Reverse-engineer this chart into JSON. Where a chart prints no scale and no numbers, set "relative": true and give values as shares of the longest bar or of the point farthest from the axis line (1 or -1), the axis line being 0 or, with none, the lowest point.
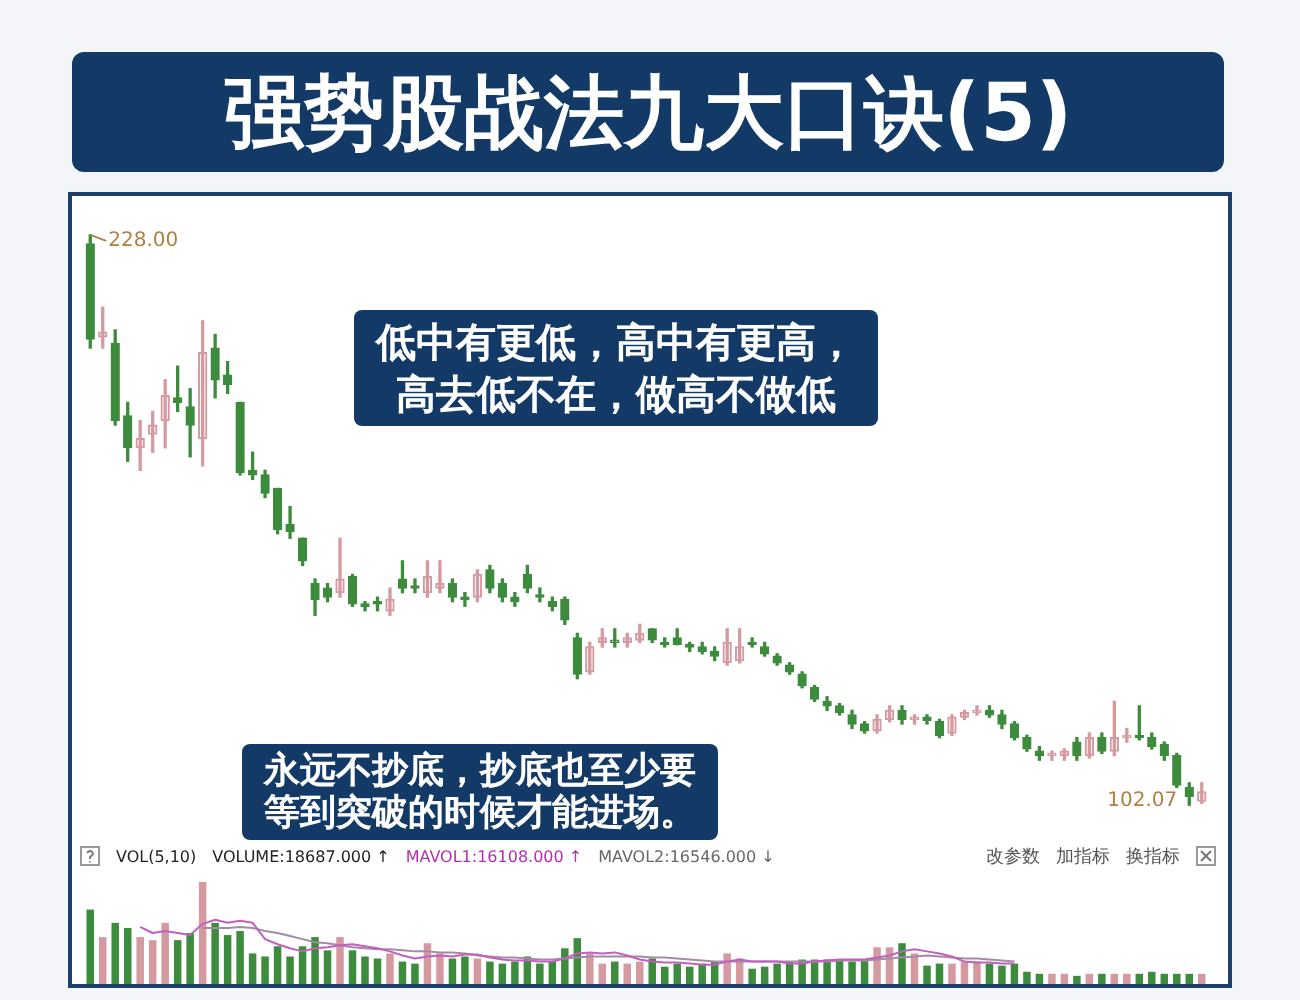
{
  "chart_data": [
    {
      "type": "candlestick",
      "title": "强势股战法九大口诀(5)",
      "tick_labels": false,
      "categories": [
        null,
        null,
        null,
        null,
        null,
        null,
        null,
        null,
        null,
        null,
        null,
        null,
        null,
        null,
        null,
        null,
        null,
        null,
        null,
        null,
        null,
        null,
        null,
        null,
        null,
        null,
        null,
        null,
        null,
        null,
        null,
        null,
        null,
        null,
        null,
        null,
        null,
        null,
        null,
        null,
        null,
        null,
        null,
        null,
        null,
        null,
        null,
        null,
        null,
        null,
        null,
        null,
        null,
        null,
        null,
        null,
        null,
        null,
        null,
        null,
        null,
        null,
        null,
        null,
        null,
        null,
        null,
        null,
        null,
        null,
        null,
        null,
        null,
        null,
        null,
        null,
        null,
        null,
        null,
        null,
        null,
        null,
        null,
        null,
        null,
        null,
        null,
        null,
        null,
        null
      ],
      "ohlc": [
        [
          226,
          228,
          203,
          205
        ],
        [
          205.5,
          212,
          203,
          206.5
        ],
        [
          204,
          207,
          186,
          187
        ],
        [
          188,
          191,
          178,
          181
        ],
        [
          181,
          187,
          176,
          183
        ],
        [
          184,
          189,
          180,
          186
        ],
        [
          187,
          196,
          181,
          192.5
        ],
        [
          192,
          199,
          189,
          191
        ],
        [
          190,
          194,
          179,
          186
        ],
        [
          183,
          209,
          177,
          202
        ],
        [
          203,
          206,
          192,
          196
        ],
        [
          197,
          200,
          193,
          195
        ],
        [
          191,
          191,
          175,
          175.5
        ],
        [
          176,
          180,
          174,
          175
        ],
        [
          175,
          176,
          170,
          171
        ],
        [
          172,
          172,
          162,
          163
        ],
        [
          164,
          168,
          161,
          162.5
        ],
        [
          161,
          161,
          155,
          156
        ],
        [
          151,
          152,
          144,
          147.5
        ],
        [
          150,
          151,
          147,
          148
        ],
        [
          149,
          161,
          148,
          152
        ],
        [
          152.5,
          153,
          146,
          146.5
        ],
        [
          146.5,
          147,
          145,
          146
        ],
        [
          147,
          148,
          145,
          146.5
        ],
        [
          145,
          150,
          144,
          147.5
        ],
        [
          152,
          156,
          149,
          150
        ],
        [
          150.5,
          152,
          149,
          150
        ],
        [
          149,
          156,
          148,
          152.5
        ],
        [
          150,
          156,
          149,
          151
        ],
        [
          151,
          152,
          147,
          148
        ],
        [
          148,
          149,
          146,
          147.5
        ],
        [
          148,
          154,
          147,
          153
        ],
        [
          154,
          155,
          149,
          150
        ],
        [
          151,
          152,
          147,
          148
        ],
        [
          148,
          149,
          146,
          147
        ],
        [
          153,
          155,
          149,
          150
        ],
        [
          148.5,
          150,
          147,
          148
        ],
        [
          147,
          148,
          145,
          146
        ],
        [
          147.5,
          148,
          142,
          143
        ],
        [
          139,
          140,
          130,
          131
        ],
        [
          131.5,
          138,
          131,
          137
        ],
        [
          138,
          141,
          137,
          139
        ],
        [
          138,
          141,
          137,
          138.5
        ],
        [
          138,
          140,
          137,
          139
        ],
        [
          138.5,
          142,
          138,
          140
        ],
        [
          141,
          141,
          138,
          138.6
        ],
        [
          138,
          139,
          137,
          137.5
        ],
        [
          139,
          141,
          137.5,
          137.6
        ],
        [
          137.5,
          138,
          136,
          137
        ],
        [
          137,
          138,
          135.5,
          136
        ],
        [
          136,
          137,
          134,
          135
        ],
        [
          133.6,
          141,
          133,
          138
        ],
        [
          134,
          141,
          133.5,
          137
        ],
        [
          138,
          139,
          137,
          137.5
        ],
        [
          137,
          138,
          135,
          135.5
        ],
        [
          135,
          135.5,
          133,
          133.5
        ],
        [
          133,
          133.5,
          131,
          131.5
        ],
        [
          131,
          131.5,
          128,
          128.5
        ],
        [
          128,
          128.5,
          125,
          125.5
        ],
        [
          125,
          126,
          123,
          124
        ],
        [
          124,
          124.5,
          122,
          122.5
        ],
        [
          122,
          123,
          119,
          120
        ],
        [
          120,
          120.5,
          118,
          118.5
        ],
        [
          118.5,
          122,
          118,
          121
        ],
        [
          121,
          124,
          120.5,
          123
        ],
        [
          123,
          124,
          120,
          121
        ],
        [
          121,
          122,
          120,
          121.5
        ],
        [
          121.5,
          122,
          120,
          120.8
        ],
        [
          120.5,
          121,
          117,
          117.5
        ],
        [
          118,
          122,
          117.5,
          121.5
        ],
        [
          121.5,
          123,
          121,
          122.5
        ],
        [
          122.5,
          124,
          122,
          123
        ],
        [
          123,
          124,
          121.5,
          122
        ],
        [
          122,
          123,
          119,
          120
        ],
        [
          120,
          120.5,
          116.5,
          117
        ],
        [
          117,
          117.5,
          114,
          114.5
        ],
        [
          114,
          115,
          112,
          113
        ],
        [
          113,
          114,
          112,
          113.5
        ],
        [
          113,
          114.5,
          112,
          114
        ],
        [
          116,
          117,
          112,
          113
        ],
        [
          113,
          118,
          112.5,
          117
        ],
        [
          117,
          118,
          113.5,
          114
        ],
        [
          114,
          125,
          113,
          117
        ],
        [
          117,
          119,
          116,
          117.5
        ],
        [
          117.5,
          124,
          116.5,
          117
        ],
        [
          117,
          118,
          114.5,
          115
        ],
        [
          115.5,
          116,
          112,
          113
        ],
        [
          113,
          113.5,
          106,
          106.5
        ],
        [
          106,
          107,
          102.07,
          104
        ],
        [
          103,
          107,
          102.5,
          105
        ]
      ],
      "colors": [
        "#3d8b3d",
        "#d49aa0",
        "#3d8b3d",
        "#3d8b3d",
        "#d49aa0",
        "#d49aa0",
        "#d49aa0",
        "#3d8b3d",
        "#3d8b3d",
        "#d49aa0",
        "#3d8b3d",
        "#3d8b3d",
        "#3d8b3d",
        "#3d8b3d",
        "#3d8b3d",
        "#3d8b3d",
        "#3d8b3d",
        "#3d8b3d",
        "#3d8b3d",
        "#3d8b3d",
        "#d49aa0",
        "#3d8b3d",
        "#3d8b3d",
        "#3d8b3d",
        "#d49aa0",
        "#3d8b3d",
        "#3d8b3d",
        "#d49aa0",
        "#d49aa0",
        "#3d8b3d",
        "#3d8b3d",
        "#d49aa0",
        "#3d8b3d",
        "#3d8b3d",
        "#3d8b3d",
        "#3d8b3d",
        "#3d8b3d",
        "#3d8b3d",
        "#3d8b3d",
        "#3d8b3d",
        "#d49aa0",
        "#d49aa0",
        "#3d8b3d",
        "#d49aa0",
        "#d49aa0",
        "#3d8b3d",
        "#3d8b3d",
        "#3d8b3d",
        "#3d8b3d",
        "#3d8b3d",
        "#3d8b3d",
        "#d49aa0",
        "#d49aa0",
        "#3d8b3d",
        "#3d8b3d",
        "#3d8b3d",
        "#3d8b3d",
        "#3d8b3d",
        "#3d8b3d",
        "#3d8b3d",
        "#3d8b3d",
        "#3d8b3d",
        "#3d8b3d",
        "#d49aa0",
        "#d49aa0",
        "#3d8b3d",
        "#d49aa0",
        "#3d8b3d",
        "#3d8b3d",
        "#d49aa0",
        "#d49aa0",
        "#d49aa0",
        "#3d8b3d",
        "#3d8b3d",
        "#3d8b3d",
        "#3d8b3d",
        "#3d8b3d",
        "#d49aa0",
        "#d49aa0",
        "#3d8b3d",
        "#d49aa0",
        "#3d8b3d",
        "#d49aa0",
        "#d49aa0",
        "#3d8b3d",
        "#3d8b3d",
        "#3d8b3d",
        "#3d8b3d",
        "#3d8b3d",
        "#d49aa0"
      ],
      "annotations": [
        "228.00",
        "102.07",
        "低中有更低，高中有更高，高去低不在，做高不做低",
        "永远不抄底，抄底也至少要等到突破的时候才能进场。"
      ]
    },
    {
      "type": "bar",
      "relative": true,
      "tick_labels": false,
      "categories": [
        null,
        null,
        null,
        null,
        null,
        null,
        null,
        null,
        null,
        null,
        null,
        null,
        null,
        null,
        null,
        null,
        null,
        null,
        null,
        null,
        null,
        null,
        null,
        null,
        null,
        null,
        null,
        null,
        null,
        null,
        null,
        null,
        null,
        null,
        null,
        null,
        null,
        null,
        null,
        null,
        null,
        null,
        null,
        null,
        null,
        null,
        null,
        null,
        null,
        null,
        null,
        null,
        null,
        null,
        null,
        null,
        null,
        null,
        null,
        null,
        null,
        null,
        null,
        null,
        null,
        null,
        null,
        null,
        null,
        null,
        null,
        null,
        null,
        null,
        null,
        null,
        null,
        null,
        null,
        null,
        null,
        null,
        null,
        null,
        null,
        null,
        null,
        null,
        null,
        null
      ],
      "annotations": [
        "VOL(5,10)",
        "VOLUME:18687.000 ↑",
        "MAVOL1:16108.000 ↑",
        "MAVOL2:16546.000 ↓",
        "改参数",
        "加指标",
        "换指标"
      ],
      "series": [
        {
          "type": "bar",
          "colors": [
            "#3d8b3d",
            "#d49aa0",
            "#3d8b3d",
            "#3d8b3d",
            "#d49aa0",
            "#d49aa0",
            "#d49aa0",
            "#3d8b3d",
            "#3d8b3d",
            "#d49aa0",
            "#3d8b3d",
            "#3d8b3d",
            "#3d8b3d",
            "#3d8b3d",
            "#3d8b3d",
            "#3d8b3d",
            "#3d8b3d",
            "#3d8b3d",
            "#3d8b3d",
            "#3d8b3d",
            "#d49aa0",
            "#3d8b3d",
            "#3d8b3d",
            "#3d8b3d",
            "#d49aa0",
            "#3d8b3d",
            "#3d8b3d",
            "#d49aa0",
            "#d49aa0",
            "#3d8b3d",
            "#3d8b3d",
            "#d49aa0",
            "#3d8b3d",
            "#3d8b3d",
            "#3d8b3d",
            "#3d8b3d",
            "#3d8b3d",
            "#3d8b3d",
            "#3d8b3d",
            "#3d8b3d",
            "#d49aa0",
            "#d49aa0",
            "#3d8b3d",
            "#d49aa0",
            "#d49aa0",
            "#3d8b3d",
            "#3d8b3d",
            "#3d8b3d",
            "#3d8b3d",
            "#3d8b3d",
            "#3d8b3d",
            "#d49aa0",
            "#d49aa0",
            "#3d8b3d",
            "#3d8b3d",
            "#3d8b3d",
            "#3d8b3d",
            "#3d8b3d",
            "#3d8b3d",
            "#3d8b3d",
            "#3d8b3d",
            "#3d8b3d",
            "#3d8b3d",
            "#d49aa0",
            "#d49aa0",
            "#3d8b3d",
            "#d49aa0",
            "#3d8b3d",
            "#3d8b3d",
            "#d49aa0",
            "#d49aa0",
            "#d49aa0",
            "#3d8b3d",
            "#3d8b3d",
            "#3d8b3d",
            "#3d8b3d",
            "#3d8b3d",
            "#d49aa0",
            "#d49aa0",
            "#3d8b3d",
            "#d49aa0",
            "#3d8b3d",
            "#d49aa0",
            "#d49aa0",
            "#3d8b3d",
            "#3d8b3d",
            "#3d8b3d",
            "#3d8b3d",
            "#3d8b3d",
            "#d49aa0"
          ],
          "values": [
            0.73,
            0.46,
            0.6,
            0.55,
            0.46,
            0.43,
            0.6,
            0.43,
            0.5,
            1,
            0.6,
            0.48,
            0.52,
            0.3,
            0.27,
            0.37,
            0.27,
            0.37,
            0.46,
            0.33,
            0.46,
            0.33,
            0.27,
            0.25,
            0.3,
            0.22,
            0.2,
            0.4,
            0.3,
            0.25,
            0.27,
            0.25,
            0.22,
            0.2,
            0.22,
            0.27,
            0.2,
            0.22,
            0.35,
            0.45,
            0.3,
            0.2,
            0.22,
            0.2,
            0.22,
            0.25,
            0.17,
            0.2,
            0.17,
            0.2,
            0.22,
            0.3,
            0.25,
            0.15,
            0.17,
            0.2,
            0.22,
            0.24,
            0.24,
            0.24,
            0.24,
            0.22,
            0.24,
            0.36,
            0.36,
            0.4,
            0.3,
            0.18,
            0.2,
            0.2,
            0.22,
            0.22,
            0.2,
            0.18,
            0.2,
            0.12,
            0.1,
            0.1,
            0.1,
            0.08,
            0.1,
            0.1,
            0.1,
            0.1,
            0.1,
            0.12,
            0.1,
            0.1,
            0.1,
            0.1
          ]
        },
        {
          "type": "line",
          "color": "#c060c0",
          "values": [
            null,
            null,
            null,
            null,
            0.56,
            0.5,
            0.52,
            0.5,
            0.48,
            0.59,
            0.63,
            0.6,
            0.62,
            0.6,
            0.44,
            0.39,
            0.35,
            0.32,
            0.35,
            0.36,
            0.38,
            0.39,
            0.37,
            0.35,
            0.32,
            0.28,
            0.25,
            0.27,
            0.28,
            0.27,
            0.29,
            0.29,
            0.26,
            0.24,
            0.23,
            0.23,
            0.22,
            0.22,
            0.25,
            0.3,
            0.31,
            0.3,
            0.31,
            0.28,
            0.24,
            0.22,
            0.21,
            0.21,
            0.2,
            0.19,
            0.19,
            0.22,
            0.24,
            0.22,
            0.22,
            0.22,
            0.2,
            0.2,
            0.22,
            0.23,
            0.24,
            0.24,
            0.24,
            0.26,
            0.28,
            0.32,
            0.34,
            0.32,
            0.3,
            0.27,
            0.22,
            0.21,
            0.21,
            0.2,
            0.2,
            null,
            null,
            null,
            null,
            null,
            null,
            null,
            null,
            null,
            null,
            null,
            null,
            null,
            null,
            null
          ]
        },
        {
          "type": "line",
          "color": "#a58aa5",
          "values": [
            null,
            null,
            null,
            null,
            null,
            null,
            null,
            null,
            null,
            0.55,
            0.55,
            0.55,
            0.56,
            0.55,
            0.52,
            0.5,
            0.47,
            0.44,
            0.41,
            0.4,
            0.38,
            0.36,
            0.35,
            0.34,
            0.34,
            0.33,
            0.32,
            0.32,
            0.31,
            0.31,
            0.3,
            0.28,
            0.27,
            0.26,
            0.26,
            0.25,
            0.24,
            0.24,
            0.25,
            0.26,
            0.27,
            0.27,
            0.27,
            0.27,
            0.27,
            0.26,
            0.26,
            0.25,
            0.24,
            0.23,
            0.22,
            0.22,
            0.22,
            0.22,
            0.22,
            0.22,
            0.22,
            0.22,
            0.22,
            0.22,
            0.23,
            0.23,
            0.23,
            0.24,
            0.25,
            0.26,
            0.27,
            0.28,
            0.27,
            0.26,
            0.25,
            0.25,
            0.24,
            0.23,
            0.22,
            null,
            null,
            null,
            null,
            null,
            null,
            null,
            null,
            null,
            null,
            null,
            null,
            null,
            null,
            null
          ]
        }
      ]
    }
  ]
}
